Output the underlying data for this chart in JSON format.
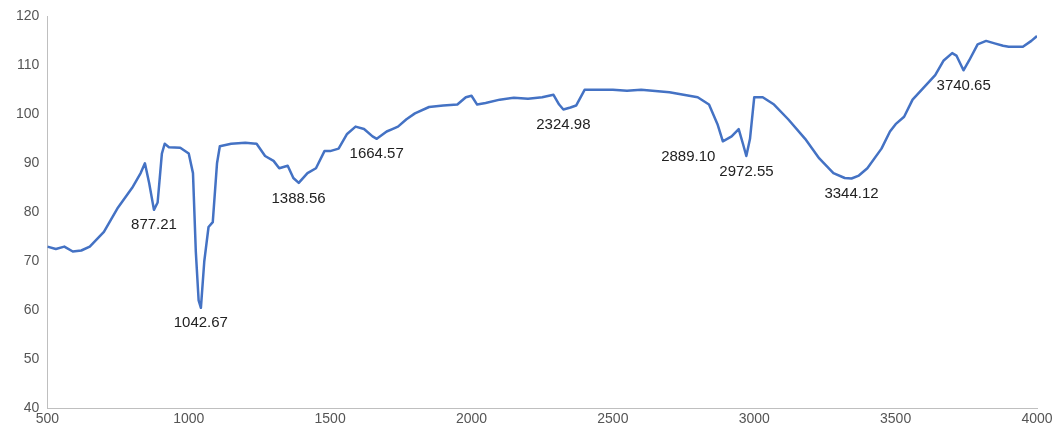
{
  "chart_data": {
    "type": "line",
    "xlim": [
      500,
      4000
    ],
    "xticks": [
      500,
      1000,
      1500,
      2000,
      2500,
      3000,
      3500,
      4000
    ],
    "ylim": [
      40,
      120
    ],
    "yticks": [
      40,
      50,
      60,
      70,
      80,
      90,
      100,
      110,
      120
    ],
    "grid": false,
    "legend": false,
    "marker": "none",
    "series": [
      {
        "color": "#4472c4",
        "x": [
          500,
          530,
          560,
          590,
          620,
          650,
          700,
          750,
          800,
          830,
          845,
          860,
          877,
          890,
          905,
          915,
          930,
          970,
          1000,
          1015,
          1025,
          1035,
          1043,
          1055,
          1070,
          1085,
          1100,
          1110,
          1150,
          1200,
          1240,
          1270,
          1300,
          1320,
          1350,
          1370,
          1389,
          1420,
          1450,
          1480,
          1500,
          1530,
          1560,
          1590,
          1620,
          1650,
          1665,
          1700,
          1720,
          1740,
          1770,
          1800,
          1850,
          1900,
          1950,
          1980,
          2000,
          2020,
          2050,
          2100,
          2150,
          2200,
          2250,
          2290,
          2310,
          2325,
          2350,
          2370,
          2400,
          2500,
          2550,
          2600,
          2700,
          2750,
          2800,
          2840,
          2870,
          2889,
          2920,
          2945,
          2960,
          2972,
          2985,
          3000,
          3030,
          3070,
          3120,
          3180,
          3230,
          3280,
          3320,
          3344,
          3370,
          3400,
          3450,
          3480,
          3500,
          3530,
          3560,
          3600,
          3640,
          3670,
          3700,
          3715,
          3740,
          3760,
          3790,
          3820,
          3850,
          3880,
          3900,
          3950,
          3980,
          4000
        ],
        "values": [
          73,
          72.5,
          73,
          72,
          72.2,
          73,
          76,
          81,
          85,
          88,
          90,
          86,
          80.5,
          82,
          92,
          94,
          93.3,
          93.2,
          92,
          88,
          72,
          62,
          60.5,
          70,
          77,
          78,
          90,
          93.5,
          94,
          94.2,
          94,
          91.5,
          90.5,
          89,
          89.5,
          87,
          86,
          88,
          89,
          92.5,
          92.5,
          93,
          96,
          97.5,
          97,
          95.5,
          95,
          96.5,
          97,
          97.5,
          99,
          100.2,
          101.5,
          101.8,
          102,
          103.5,
          103.8,
          102,
          102.3,
          103,
          103.4,
          103.2,
          103.5,
          104,
          102,
          101,
          101.4,
          101.8,
          105,
          105,
          104.8,
          105,
          104.5,
          104,
          103.5,
          102,
          98,
          94.5,
          95.5,
          97,
          94,
          91.5,
          95,
          103.5,
          103.5,
          102,
          99,
          95,
          91,
          88,
          87,
          86.9,
          87.5,
          89,
          93,
          96.5,
          98,
          99.5,
          103,
          105.5,
          108,
          111,
          112.5,
          112,
          109,
          111,
          114.3,
          115,
          114.5,
          114,
          113.8,
          113.8,
          115,
          116
        ]
      }
    ],
    "annotations": [
      {
        "text": "877.21",
        "x": 877.21,
        "y": 80.5
      },
      {
        "text": "1042.67",
        "x": 1042.67,
        "y": 60.5
      },
      {
        "text": "1388.56",
        "x": 1388.56,
        "y": 86
      },
      {
        "text": "1664.57",
        "x": 1664.57,
        "y": 95
      },
      {
        "text": "2324.98",
        "x": 2324.98,
        "y": 101
      },
      {
        "text": "2889.10",
        "x": 2889.1,
        "y": 94.5
      },
      {
        "text": "2972.55",
        "x": 2972.55,
        "y": 91.5
      },
      {
        "text": "3344.12",
        "x": 3344.12,
        "y": 86.9
      },
      {
        "text": "3740.65",
        "x": 3740.65,
        "y": 109
      }
    ]
  }
}
